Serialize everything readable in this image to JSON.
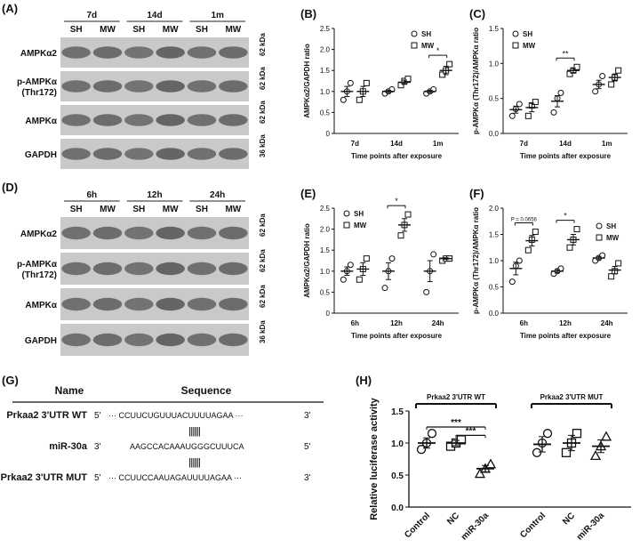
{
  "panels": {
    "A": "(A)",
    "B": "(B)",
    "C": "(C)",
    "D": "(D)",
    "E": "(E)",
    "F": "(F)",
    "G": "(G)",
    "H": "(H)"
  },
  "blot_A": {
    "times": [
      "7d",
      "14d",
      "1m"
    ],
    "groups": [
      "SH",
      "MW",
      "SH",
      "MW",
      "SH",
      "MW"
    ],
    "rows": [
      {
        "label": "AMPKα2",
        "kda": "62 kDa"
      },
      {
        "label": "p-AMPKα\n(Thr172)",
        "kda": "62 kDa"
      },
      {
        "label": "AMPKα",
        "kda": "62 kDa"
      },
      {
        "label": "GAPDH",
        "kda": "36 kDa"
      }
    ]
  },
  "blot_D": {
    "times": [
      "6h",
      "12h",
      "24h"
    ],
    "groups": [
      "SH",
      "MW",
      "SH",
      "MW",
      "SH",
      "MW"
    ],
    "rows": [
      {
        "label": "AMPKα2",
        "kda": "62 kDa"
      },
      {
        "label": "p-AMPKα\n(Thr172)",
        "kda": "62 kDa"
      },
      {
        "label": "AMPKα",
        "kda": "62 kDa"
      },
      {
        "label": "GAPDH",
        "kda": "36 kDa"
      }
    ]
  },
  "sequences": {
    "header_name": "Name",
    "header_seq": "Sequence",
    "rows": [
      {
        "name": "Prkaa2 3'UTR WT",
        "p5": "5'",
        "seq": "··· CCUUCUGUUUACUUUUAGAA ···",
        "p3": "3'"
      },
      {
        "name": "miR-30a",
        "p5": "3'",
        "seq": "AAGCCACAAAUGGGCUUUCA",
        "p3": "5'"
      },
      {
        "name": "Prkaa2 3'UTR MUT",
        "p5": "5'",
        "seq": "··· CCUUCCAAUAGAUUUUAGAA ···",
        "p3": "3'"
      }
    ],
    "pairing": "|||||||"
  },
  "chart_data": [
    {
      "panel": "B",
      "type": "scatter",
      "categories": [
        "7d",
        "14d",
        "1m"
      ],
      "xlabel": "Time points after exposure",
      "ylabel": "AMPKα2/GAPDH ratio",
      "ylim": [
        0,
        2.5
      ],
      "yticks": [
        "0",
        "0.5",
        "1.0",
        "1.5",
        "2.0",
        "2.5"
      ],
      "legend": [
        "SH",
        "MW"
      ],
      "legend_position": "top-right",
      "series": [
        {
          "name": "SH",
          "marker": "circle",
          "points": [
            [
              0.8,
              1.0,
              1.2
            ],
            [
              0.95,
              1.0,
              1.05
            ],
            [
              0.95,
              1.0,
              1.05
            ]
          ],
          "means": [
            1.0,
            1.0,
            1.0
          ],
          "sem": [
            0.12,
            0.03,
            0.03
          ]
        },
        {
          "name": "MW",
          "marker": "square",
          "points": [
            [
              0.8,
              1.0,
              1.2
            ],
            [
              1.15,
              1.25,
              1.3
            ],
            [
              1.4,
              1.5,
              1.65
            ]
          ],
          "means": [
            1.0,
            1.22,
            1.5
          ],
          "sem": [
            0.12,
            0.05,
            0.1
          ]
        }
      ],
      "annotations": [
        {
          "category": "1m",
          "text": "*"
        }
      ]
    },
    {
      "panel": "C",
      "type": "scatter",
      "categories": [
        "7d",
        "14d",
        "1m"
      ],
      "xlabel": "Time points after exposure",
      "ylabel": "p-AMPKα (Thr172)/AMPKα ratio",
      "ylim": [
        0,
        1.5
      ],
      "yticks": [
        "0.0",
        "0.5",
        "1.0",
        "1.5"
      ],
      "legend": [
        "SH",
        "MW"
      ],
      "legend_position": "top-left",
      "series": [
        {
          "name": "SH",
          "marker": "circle",
          "points": [
            [
              0.25,
              0.35,
              0.42
            ],
            [
              0.3,
              0.5,
              0.58
            ],
            [
              0.6,
              0.7,
              0.82
            ]
          ],
          "means": [
            0.34,
            0.46,
            0.7
          ],
          "sem": [
            0.05,
            0.08,
            0.06
          ]
        },
        {
          "name": "MW",
          "marker": "square",
          "points": [
            [
              0.25,
              0.4,
              0.45
            ],
            [
              0.85,
              0.9,
              0.95
            ],
            [
              0.7,
              0.8,
              0.9
            ]
          ],
          "means": [
            0.37,
            0.9,
            0.8
          ],
          "sem": [
            0.06,
            0.03,
            0.05
          ]
        }
      ],
      "annotations": [
        {
          "category": "14d",
          "text": "**"
        }
      ]
    },
    {
      "panel": "E",
      "type": "scatter",
      "categories": [
        "6h",
        "12h",
        "24h"
      ],
      "xlabel": "Time points after exposure",
      "ylabel": "AMPKα2/GAPDH ratio",
      "ylim": [
        0,
        2.5
      ],
      "yticks": [
        "0",
        "0.5",
        "1.0",
        "1.5",
        "2.0",
        "2.5"
      ],
      "legend": [
        "SH",
        "MW"
      ],
      "legend_position": "top-left",
      "series": [
        {
          "name": "SH",
          "marker": "circle",
          "points": [
            [
              0.8,
              1.0,
              1.15
            ],
            [
              0.6,
              1.0,
              1.3
            ],
            [
              0.5,
              1.0,
              1.4
            ]
          ],
          "means": [
            1.0,
            1.0,
            1.0
          ],
          "sem": [
            0.1,
            0.2,
            0.25
          ]
        },
        {
          "name": "MW",
          "marker": "square",
          "points": [
            [
              0.8,
              1.05,
              1.3
            ],
            [
              1.85,
              2.1,
              2.35
            ],
            [
              1.25,
              1.3,
              1.3
            ]
          ],
          "means": [
            1.05,
            2.1,
            1.3
          ],
          "sem": [
            0.15,
            0.15,
            0.02
          ]
        }
      ],
      "annotations": [
        {
          "category": "12h",
          "text": "*"
        }
      ]
    },
    {
      "panel": "F",
      "type": "scatter",
      "categories": [
        "6h",
        "12h",
        "24h"
      ],
      "xlabel": "Time points after exposure",
      "ylabel": "p-AMPKα (Thr172)/AMPKα ratio",
      "ylim": [
        0,
        2.0
      ],
      "yticks": [
        "0.0",
        "0.5",
        "1.0",
        "1.5",
        "2.0"
      ],
      "legend": [
        "SH",
        "MW"
      ],
      "legend_position": "right",
      "series": [
        {
          "name": "SH",
          "marker": "circle",
          "points": [
            [
              0.6,
              0.9,
              1.0
            ],
            [
              0.75,
              0.8,
              0.85
            ],
            [
              1.0,
              1.05,
              1.1
            ]
          ],
          "means": [
            0.85,
            0.8,
            1.05
          ],
          "sem": [
            0.12,
            0.03,
            0.03
          ]
        },
        {
          "name": "MW",
          "marker": "square",
          "points": [
            [
              1.2,
              1.4,
              1.55
            ],
            [
              1.25,
              1.4,
              1.6
            ],
            [
              0.7,
              0.8,
              0.95
            ]
          ],
          "means": [
            1.38,
            1.4,
            0.82
          ],
          "sem": [
            0.1,
            0.1,
            0.07
          ]
        }
      ],
      "annotations": [
        {
          "category": "6h",
          "text": "P = 0.0656"
        },
        {
          "category": "12h",
          "text": "*"
        }
      ]
    },
    {
      "panel": "H",
      "type": "scatter",
      "categories": [
        "Control",
        "NC",
        "miR-30a",
        "Control",
        "NC",
        "miR-30a"
      ],
      "ylabel": "Relative luciferase activity",
      "ylim": [
        0,
        1.5
      ],
      "yticks": [
        "0.0",
        "0.5",
        "1.0",
        "1.5"
      ],
      "groups": [
        {
          "label": "Prkaa2 3'UTR WT",
          "span": [
            0,
            2
          ]
        },
        {
          "label": "Prkaa2 3'UTR MUT",
          "span": [
            3,
            5
          ]
        }
      ],
      "series": [
        {
          "category": 0,
          "marker": "circle",
          "points": [
            0.9,
            1.0,
            1.15
          ],
          "mean": 1.0,
          "sem": 0.08
        },
        {
          "category": 1,
          "marker": "square",
          "points": [
            0.95,
            1.0,
            1.05
          ],
          "mean": 1.0,
          "sem": 0.04
        },
        {
          "category": 2,
          "marker": "triangle",
          "points": [
            0.52,
            0.6,
            0.67
          ],
          "mean": 0.6,
          "sem": 0.05
        },
        {
          "category": 3,
          "marker": "circle",
          "points": [
            0.85,
            1.0,
            1.15
          ],
          "mean": 0.98,
          "sem": 0.12
        },
        {
          "category": 4,
          "marker": "square",
          "points": [
            0.85,
            1.0,
            1.15
          ],
          "mean": 1.0,
          "sem": 0.12
        },
        {
          "category": 5,
          "marker": "triangle",
          "points": [
            0.8,
            0.95,
            1.1
          ],
          "mean": 0.95,
          "sem": 0.1
        }
      ],
      "annotations": [
        {
          "from": 0,
          "to": 2,
          "text": "***"
        },
        {
          "from": 1,
          "to": 2,
          "text": "***"
        }
      ]
    }
  ]
}
